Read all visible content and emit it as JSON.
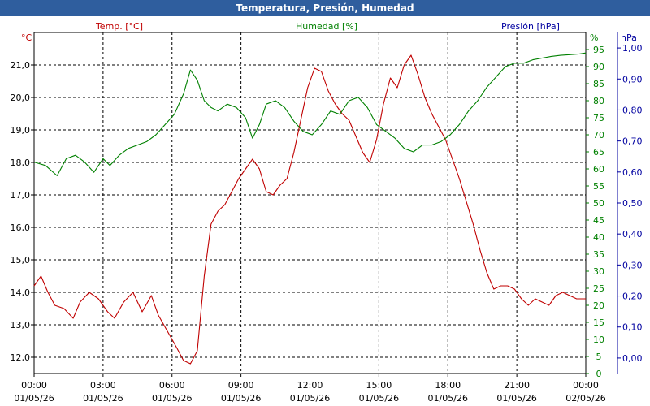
{
  "window": {
    "title": "Temperatura, Presión, Humedad"
  },
  "chart_data": {
    "type": "line",
    "title": "Temperatura, Presión, Humedad",
    "grid": true,
    "x_ticks": [
      {
        "time": "00:00",
        "date": "01/05/26"
      },
      {
        "time": "03:00",
        "date": "01/05/26"
      },
      {
        "time": "06:00",
        "date": "01/05/26"
      },
      {
        "time": "09:00",
        "date": "01/05/26"
      },
      {
        "time": "12:00",
        "date": "01/05/26"
      },
      {
        "time": "15:00",
        "date": "01/05/26"
      },
      {
        "time": "18:00",
        "date": "01/05/26"
      },
      {
        "time": "21:00",
        "date": "01/05/26"
      },
      {
        "time": "00:00",
        "date": "02/05/26"
      }
    ],
    "axes": {
      "temperature": {
        "unit": "°C",
        "min": 11.5,
        "max": 22.0,
        "ticks": [
          "12,0",
          "13,0",
          "14,0",
          "15,0",
          "16,0",
          "17,0",
          "18,0",
          "19,0",
          "20,0",
          "21,0"
        ],
        "color": "#c00000"
      },
      "humidity": {
        "unit": "%",
        "min": 0,
        "max": 100,
        "ticks": [
          "0",
          "5",
          "10",
          "15",
          "20",
          "25",
          "30",
          "35",
          "40",
          "45",
          "50",
          "55",
          "60",
          "65",
          "70",
          "75",
          "80",
          "85",
          "90",
          "95"
        ],
        "color": "#008000"
      },
      "pressure": {
        "unit": "hPa",
        "min": -0.05,
        "max": 1.05,
        "ticks": [
          "0,00",
          "0,10",
          "0,20",
          "0,30",
          "0,40",
          "0,50",
          "0,60",
          "0,70",
          "0,80",
          "0,90",
          "1,00"
        ],
        "color": "#0000a0"
      }
    },
    "series": [
      {
        "name": "Temp. [°C]",
        "axis": "temperature",
        "color": "#c00000",
        "points": [
          [
            0,
            14.2
          ],
          [
            0.3,
            14.5
          ],
          [
            0.6,
            14.0
          ],
          [
            0.9,
            13.6
          ],
          [
            1.3,
            13.5
          ],
          [
            1.7,
            13.2
          ],
          [
            2.0,
            13.7
          ],
          [
            2.4,
            14.0
          ],
          [
            2.8,
            13.8
          ],
          [
            3.2,
            13.4
          ],
          [
            3.5,
            13.2
          ],
          [
            3.9,
            13.7
          ],
          [
            4.3,
            14.0
          ],
          [
            4.7,
            13.4
          ],
          [
            5.1,
            13.9
          ],
          [
            5.4,
            13.3
          ],
          [
            5.8,
            12.8
          ],
          [
            6.2,
            12.3
          ],
          [
            6.5,
            11.9
          ],
          [
            6.8,
            11.8
          ],
          [
            7.1,
            12.2
          ],
          [
            7.4,
            14.5
          ],
          [
            7.7,
            16.1
          ],
          [
            8.0,
            16.5
          ],
          [
            8.3,
            16.7
          ],
          [
            8.6,
            17.1
          ],
          [
            8.9,
            17.5
          ],
          [
            9.2,
            17.8
          ],
          [
            9.5,
            18.1
          ],
          [
            9.8,
            17.8
          ],
          [
            10.1,
            17.1
          ],
          [
            10.4,
            17.0
          ],
          [
            10.7,
            17.3
          ],
          [
            11.0,
            17.5
          ],
          [
            11.3,
            18.3
          ],
          [
            11.6,
            19.3
          ],
          [
            11.9,
            20.3
          ],
          [
            12.2,
            20.9
          ],
          [
            12.5,
            20.8
          ],
          [
            12.8,
            20.2
          ],
          [
            13.1,
            19.8
          ],
          [
            13.4,
            19.5
          ],
          [
            13.7,
            19.3
          ],
          [
            14.0,
            18.8
          ],
          [
            14.3,
            18.3
          ],
          [
            14.6,
            18.0
          ],
          [
            14.9,
            18.7
          ],
          [
            15.2,
            19.8
          ],
          [
            15.5,
            20.6
          ],
          [
            15.8,
            20.3
          ],
          [
            16.1,
            21.0
          ],
          [
            16.4,
            21.3
          ],
          [
            16.7,
            20.7
          ],
          [
            17.0,
            20.0
          ],
          [
            17.3,
            19.5
          ],
          [
            17.6,
            19.1
          ],
          [
            17.9,
            18.7
          ],
          [
            18.2,
            18.1
          ],
          [
            18.5,
            17.5
          ],
          [
            18.8,
            16.8
          ],
          [
            19.1,
            16.1
          ],
          [
            19.4,
            15.3
          ],
          [
            19.7,
            14.6
          ],
          [
            20.0,
            14.1
          ],
          [
            20.3,
            14.2
          ],
          [
            20.6,
            14.2
          ],
          [
            20.9,
            14.1
          ],
          [
            21.2,
            13.8
          ],
          [
            21.5,
            13.6
          ],
          [
            21.8,
            13.8
          ],
          [
            22.1,
            13.7
          ],
          [
            22.4,
            13.6
          ],
          [
            22.7,
            13.9
          ],
          [
            23.0,
            14.0
          ],
          [
            23.3,
            13.9
          ],
          [
            23.6,
            13.8
          ],
          [
            24.0,
            13.8
          ]
        ]
      },
      {
        "name": "Humedad [%]",
        "axis": "humidity",
        "color": "#008000",
        "points": [
          [
            0,
            62
          ],
          [
            0.5,
            61
          ],
          [
            1.0,
            58
          ],
          [
            1.4,
            63
          ],
          [
            1.8,
            64
          ],
          [
            2.2,
            62
          ],
          [
            2.6,
            59
          ],
          [
            3.0,
            63
          ],
          [
            3.3,
            61
          ],
          [
            3.7,
            64
          ],
          [
            4.1,
            66
          ],
          [
            4.5,
            67
          ],
          [
            4.9,
            68
          ],
          [
            5.3,
            70
          ],
          [
            5.7,
            73
          ],
          [
            6.1,
            76
          ],
          [
            6.5,
            82
          ],
          [
            6.8,
            89
          ],
          [
            7.1,
            86
          ],
          [
            7.4,
            80
          ],
          [
            7.7,
            78
          ],
          [
            8.0,
            77
          ],
          [
            8.4,
            79
          ],
          [
            8.8,
            78
          ],
          [
            9.2,
            75
          ],
          [
            9.5,
            69
          ],
          [
            9.8,
            73
          ],
          [
            10.1,
            79
          ],
          [
            10.5,
            80
          ],
          [
            10.9,
            78
          ],
          [
            11.3,
            74
          ],
          [
            11.7,
            71
          ],
          [
            12.1,
            70
          ],
          [
            12.5,
            73
          ],
          [
            12.9,
            77
          ],
          [
            13.3,
            76
          ],
          [
            13.7,
            80
          ],
          [
            14.1,
            81
          ],
          [
            14.5,
            78
          ],
          [
            14.9,
            73
          ],
          [
            15.3,
            71
          ],
          [
            15.7,
            69
          ],
          [
            16.1,
            66
          ],
          [
            16.5,
            65
          ],
          [
            16.9,
            67
          ],
          [
            17.3,
            67
          ],
          [
            17.7,
            68
          ],
          [
            18.1,
            70
          ],
          [
            18.5,
            73
          ],
          [
            18.9,
            77
          ],
          [
            19.3,
            80
          ],
          [
            19.7,
            84
          ],
          [
            20.1,
            87
          ],
          [
            20.5,
            90
          ],
          [
            20.9,
            91
          ],
          [
            21.3,
            91
          ],
          [
            21.7,
            92
          ],
          [
            22.1,
            92.5
          ],
          [
            22.5,
            93
          ],
          [
            22.9,
            93.3
          ],
          [
            23.3,
            93.5
          ],
          [
            23.7,
            93.7
          ],
          [
            24.0,
            94
          ]
        ]
      }
    ],
    "series_labels": {
      "temperature": "Temp. [°C]",
      "humidity": "Humedad [%]",
      "pressure": "Presión [hPa]"
    }
  }
}
